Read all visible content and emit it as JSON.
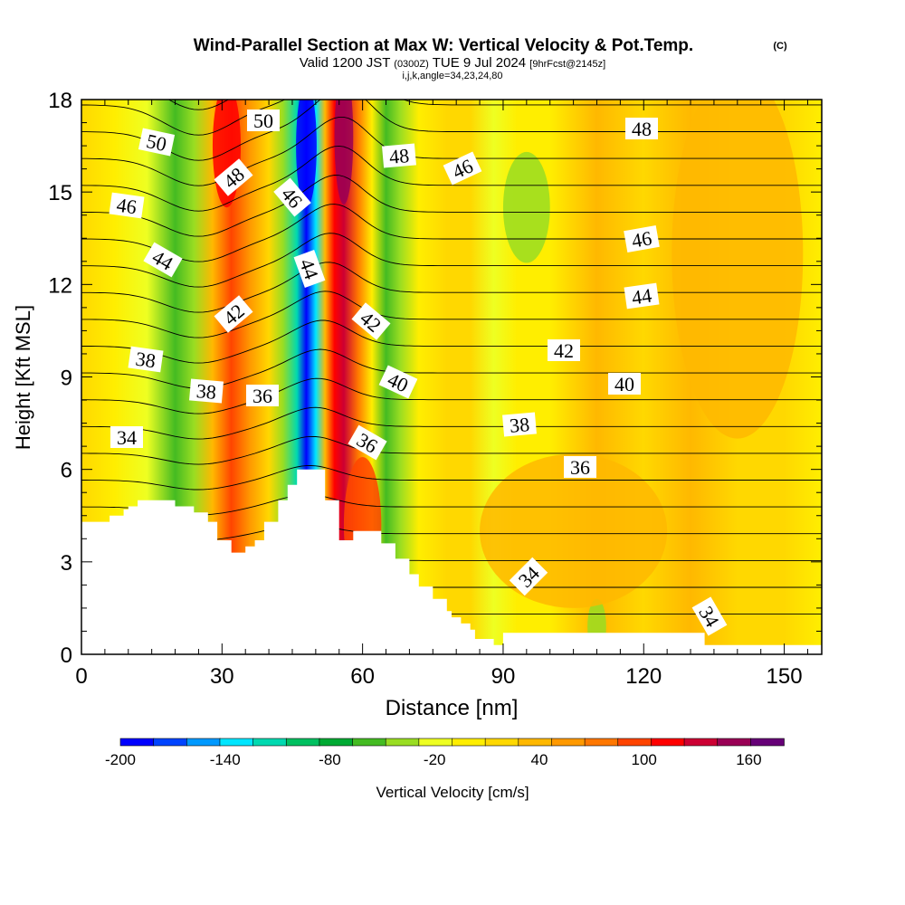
{
  "chart_data": {
    "type": "heatmap",
    "title": "Wind-Parallel Section at Max W: Vertical Velocity & Pot.Temp.",
    "title_mark": "(C)",
    "subtitle_valid": "Valid 1200 JST",
    "subtitle_utc": "(0300Z)",
    "subtitle_date": "TUE 9 Jul 2024",
    "subtitle_fcst": "[9hrFcst@2145z]",
    "subtitle_index": "i,j,k,angle=34,23,24,80",
    "xlabel": "Distance [nm]",
    "ylabel": "Height [Kft MSL]",
    "xlim": [
      0,
      158
    ],
    "ylim": [
      0,
      18
    ],
    "x_ticks": [
      "0",
      "30",
      "60",
      "90",
      "120",
      "150"
    ],
    "y_ticks": [
      "0",
      "3",
      "6",
      "9",
      "12",
      "15",
      "18"
    ],
    "colorbar": {
      "label": "Vertical Velocity [cm/s]",
      "range": [
        -200,
        180
      ],
      "tick_labels": [
        "-200",
        "-140",
        "-80",
        "-20",
        "40",
        "100",
        "160"
      ],
      "colors": [
        "#0000ff",
        "#0044ff",
        "#0099ff",
        "#00e6ff",
        "#00d9b0",
        "#00c060",
        "#00aa33",
        "#44bb22",
        "#99dd22",
        "#eeff22",
        "#ffee00",
        "#ffd800",
        "#ffb800",
        "#ff9900",
        "#ff7700",
        "#ff4400",
        "#ff0000",
        "#cc0033",
        "#990055",
        "#660077"
      ]
    },
    "vertical_velocity_bands": [
      {
        "x": 0,
        "w": 12
      },
      {
        "x": 7,
        "w": -8
      },
      {
        "x": 14,
        "w": -22
      },
      {
        "x": 20,
        "w": -55
      },
      {
        "x": 24,
        "w": -35
      },
      {
        "x": 28,
        "w": 40
      },
      {
        "x": 32,
        "w": 90
      },
      {
        "x": 36,
        "w": 55
      },
      {
        "x": 40,
        "w": 20
      },
      {
        "x": 43,
        "w": -40
      },
      {
        "x": 46,
        "w": -120
      },
      {
        "x": 48,
        "w": -195
      },
      {
        "x": 50,
        "w": -130
      },
      {
        "x": 52,
        "w": 30
      },
      {
        "x": 54,
        "w": 110
      },
      {
        "x": 56,
        "w": 140
      },
      {
        "x": 59,
        "w": 70
      },
      {
        "x": 62,
        "w": -10
      },
      {
        "x": 65,
        "w": -65
      },
      {
        "x": 68,
        "w": -30
      },
      {
        "x": 72,
        "w": 5
      },
      {
        "x": 78,
        "w": 25
      },
      {
        "x": 83,
        "w": 10
      },
      {
        "x": 88,
        "w": -20
      },
      {
        "x": 93,
        "w": -10
      },
      {
        "x": 100,
        "w": 8
      },
      {
        "x": 110,
        "w": 28
      },
      {
        "x": 120,
        "w": 15
      },
      {
        "x": 130,
        "w": 30
      },
      {
        "x": 140,
        "w": 20
      },
      {
        "x": 150,
        "w": 12
      },
      {
        "x": 158,
        "w": 5
      }
    ],
    "theta_labels": [
      "50",
      "50",
      "48",
      "48",
      "48",
      "46",
      "46",
      "46",
      "46",
      "44",
      "44",
      "44",
      "42",
      "42",
      "42",
      "40",
      "40",
      "38",
      "38",
      "38",
      "36",
      "36",
      "36",
      "34",
      "34",
      "34"
    ],
    "terrain_x": [
      0,
      6,
      6,
      9,
      9,
      10,
      10,
      12,
      12,
      20,
      20,
      24,
      24,
      27,
      27,
      29,
      29,
      32,
      32,
      35,
      35,
      37,
      37,
      39,
      39,
      42,
      42,
      44,
      44,
      46,
      46,
      52,
      52,
      55,
      55,
      58,
      58,
      64,
      64,
      67,
      67,
      70,
      70,
      72,
      72,
      75,
      75,
      78,
      78,
      79,
      79,
      81,
      81,
      83,
      83,
      84,
      84,
      88,
      88,
      90,
      90,
      133,
      133,
      139,
      139,
      158
    ],
    "terrain_y": [
      4.3,
      4.3,
      4.5,
      4.5,
      4.7,
      4.7,
      4.8,
      4.8,
      5.0,
      5.0,
      4.8,
      4.8,
      4.6,
      4.6,
      4.3,
      4.3,
      3.7,
      3.7,
      3.3,
      3.3,
      3.5,
      3.5,
      3.7,
      3.7,
      4.3,
      4.3,
      5.0,
      5.0,
      5.5,
      5.5,
      6.0,
      6.0,
      5.0,
      5.0,
      3.7,
      3.7,
      4.0,
      4.0,
      3.6,
      3.6,
      3.1,
      3.1,
      2.6,
      2.6,
      2.2,
      2.2,
      1.8,
      1.8,
      1.4,
      1.4,
      1.2,
      1.2,
      1.0,
      1.0,
      0.8,
      0.8,
      0.5,
      0.5,
      0.3,
      0.3,
      0.7,
      0.7,
      0.3,
      0.3,
      0.3,
      0.3
    ]
  }
}
